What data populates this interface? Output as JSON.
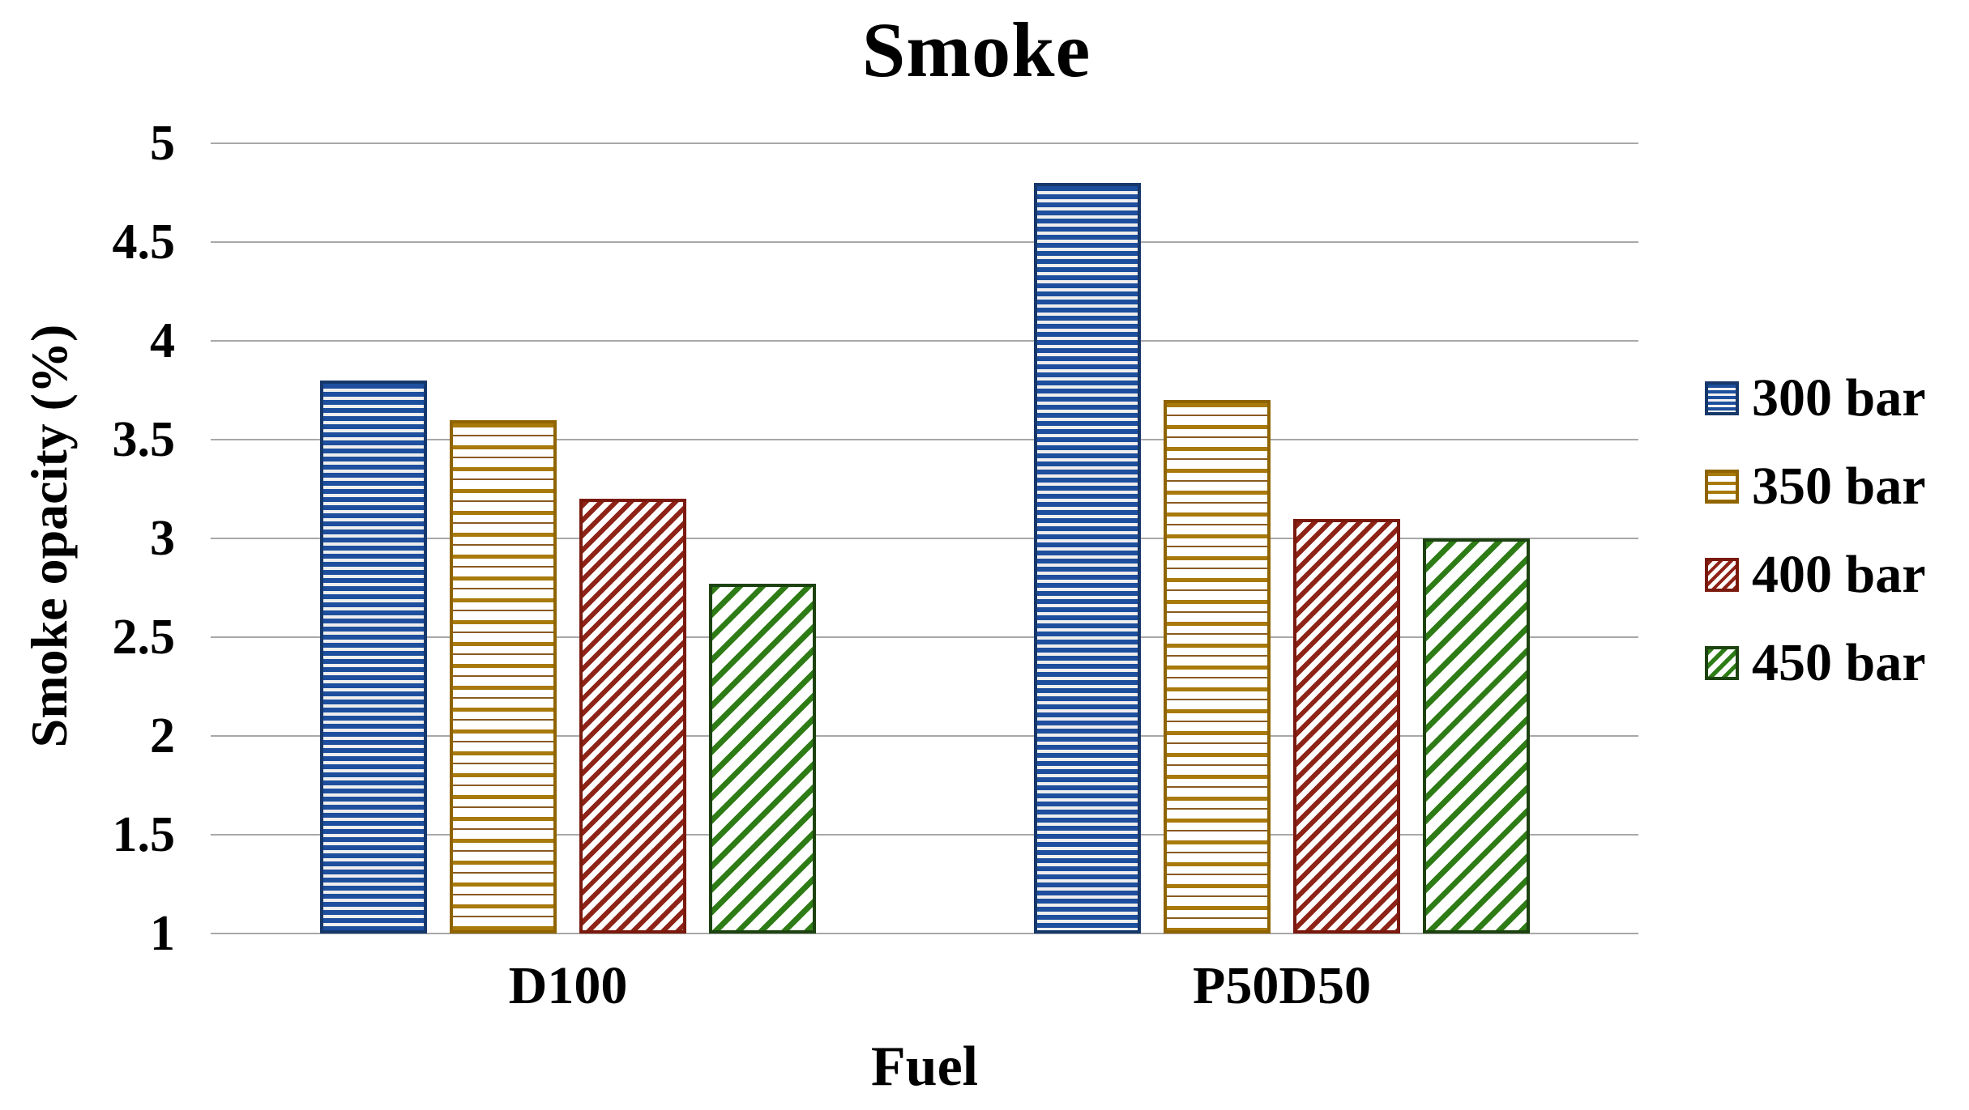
{
  "title": "Smoke",
  "y_axis": {
    "label": "Smoke opacity (%)",
    "ticks": [
      "5",
      "4.5",
      "4",
      "3.5",
      "3",
      "2.5",
      "2",
      "1.5",
      "1"
    ]
  },
  "x_axis": {
    "label": "Fuel",
    "categories": [
      "D100",
      "P50D50"
    ]
  },
  "legend": {
    "position": "right",
    "entries": [
      {
        "label": "300 bar",
        "pattern": "horizontal-lines",
        "color": "#1e4f9e"
      },
      {
        "label": "350 bar",
        "pattern": "horizontal-lines",
        "color": "#a8790b"
      },
      {
        "label": "400 bar",
        "pattern": "diagonal-stripes",
        "color": "#8e2317"
      },
      {
        "label": "450 bar",
        "pattern": "diagonal-stripes",
        "color": "#2e7c15"
      }
    ]
  },
  "chart_data": {
    "type": "bar",
    "title": "Smoke",
    "xlabel": "Fuel",
    "ylabel": "Smoke opacity (%)",
    "categories": [
      "D100",
      "P50D50"
    ],
    "series": [
      {
        "name": "300 bar",
        "values": [
          3.8,
          4.8
        ]
      },
      {
        "name": "350 bar",
        "values": [
          3.6,
          3.7
        ]
      },
      {
        "name": "400 bar",
        "values": [
          3.2,
          3.1
        ]
      },
      {
        "name": "450 bar",
        "values": [
          2.77,
          3.0
        ]
      }
    ],
    "ylim": [
      1,
      5
    ],
    "ytick_step": 0.5,
    "grid": true,
    "legend_position": "right"
  }
}
